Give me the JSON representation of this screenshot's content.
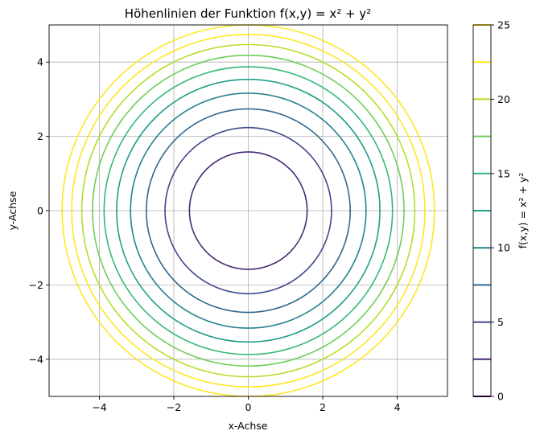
{
  "chart_data": {
    "type": "contour",
    "title": "Höhenlinien der Funktion f(x,y) = x² + y²",
    "xlabel": "x-Achse",
    "ylabel": "y-Achse",
    "xlim": [
      -5.35,
      5.35
    ],
    "ylim": [
      -5,
      5
    ],
    "x_ticks": [
      -4,
      -2,
      0,
      2,
      4
    ],
    "y_ticks": [
      -4,
      -2,
      0,
      2,
      4
    ],
    "x_tick_labels": [
      "−4",
      "−2",
      "0",
      "2",
      "4"
    ],
    "y_tick_labels": [
      "−4",
      "−2",
      "0",
      "2",
      "4"
    ],
    "grid": true,
    "levels": [
      0,
      2.5,
      5,
      7.5,
      10,
      12.5,
      15,
      17.5,
      20,
      22.5,
      25
    ],
    "level_colors": [
      "#440154",
      "#482878",
      "#3e4989",
      "#31688e",
      "#26828e",
      "#1f9e89",
      "#35b779",
      "#6ece58",
      "#b5de2b",
      "#fde725",
      "#fde725"
    ],
    "colorbar": {
      "label": "f(x,y) = x² + y²",
      "range": [
        0,
        25
      ],
      "ticks": [
        0,
        5,
        10,
        15,
        20,
        25
      ],
      "tick_labels": [
        "0",
        "5",
        "10",
        "15",
        "20",
        "25"
      ]
    }
  }
}
